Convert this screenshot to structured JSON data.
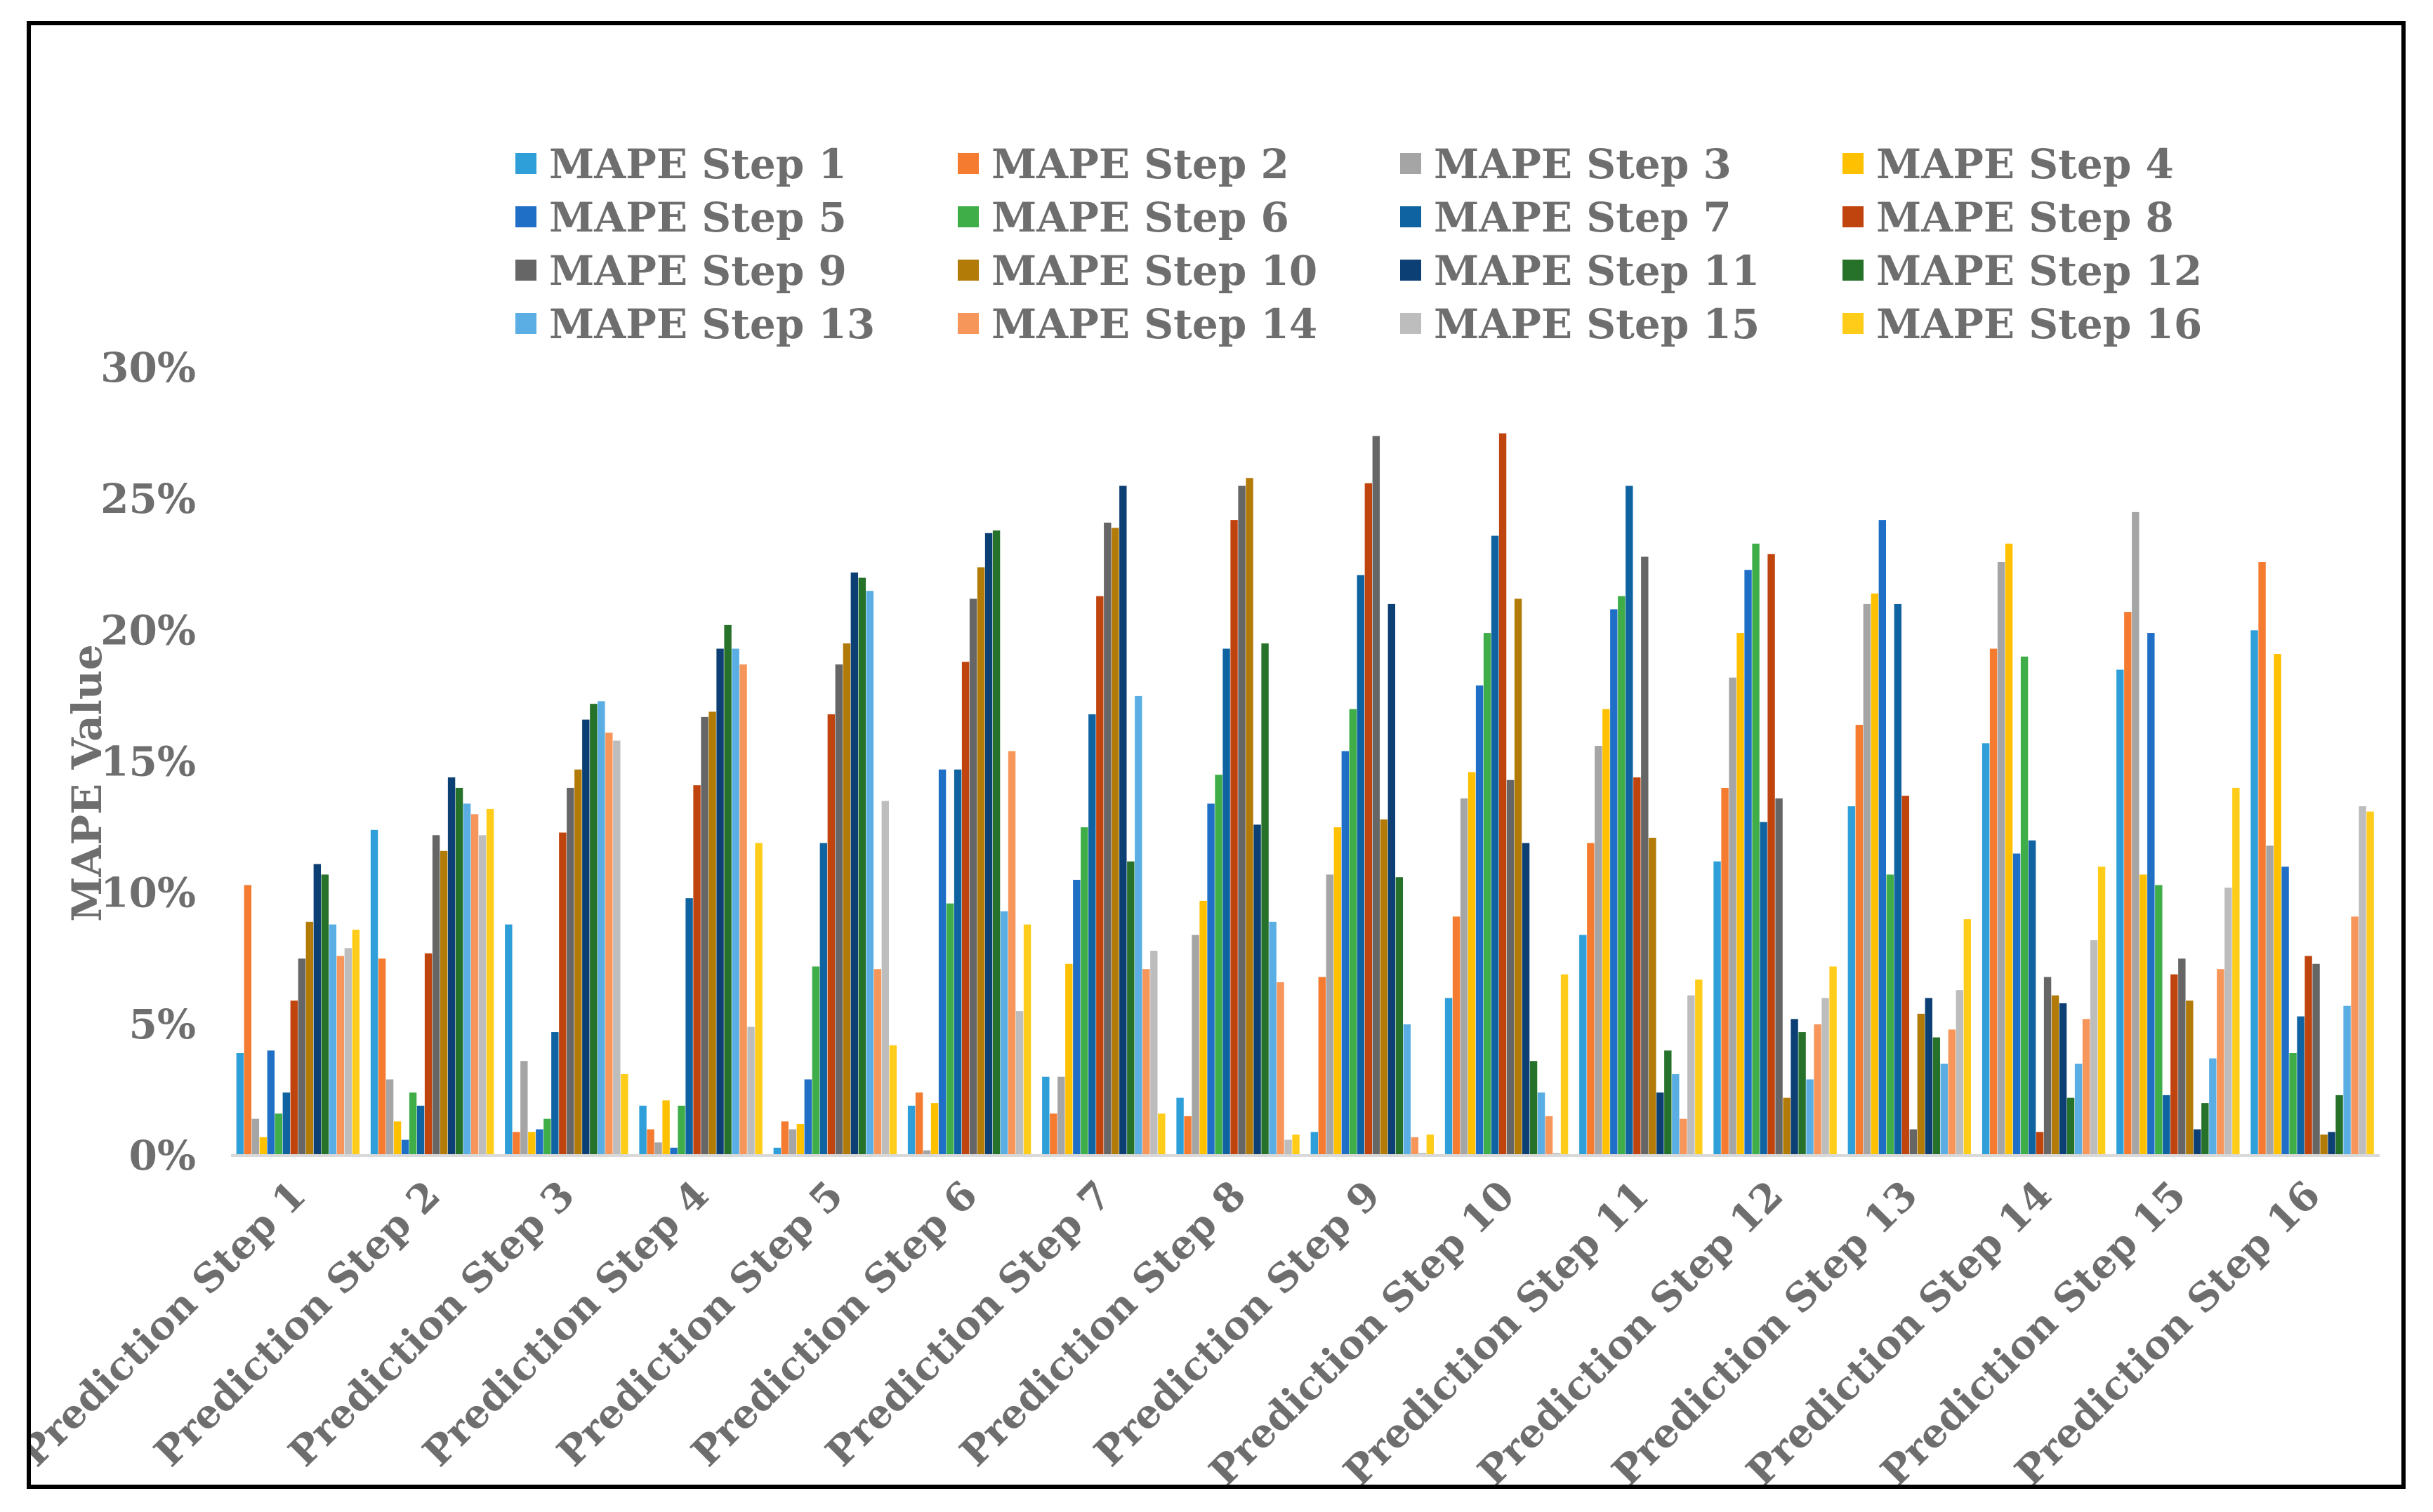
{
  "chart_data": {
    "type": "bar",
    "title": "",
    "xlabel": "",
    "ylabel": "MAPE Value",
    "ylim": [
      0,
      0.3
    ],
    "yticks": [
      "0%",
      "5%",
      "10%",
      "15%",
      "20%",
      "25%",
      "30%"
    ],
    "grid": false,
    "legend_position": "top",
    "categories": [
      "Prediction Step 1",
      "Prediction Step 2",
      "Prediction Step 3",
      "Prediction Step 4",
      "Prediction Step 5",
      "Prediction Step 6",
      "Prediction Step 7",
      "Prediction Step 8",
      "Prediction Step 9",
      "Prediction Step 10",
      "Prediction Step 11",
      "Prediction Step 12",
      "Prediction Step 13",
      "Prediction Step 14",
      "Prediction Step 15",
      "Prediction Step 16"
    ],
    "series": [
      {
        "name": "MAPE Step 1",
        "color": "#2e9fd8",
        "values": [
          0.039,
          0.124,
          0.088,
          0.019,
          0.003,
          0.019,
          0.03,
          0.022,
          0.009,
          0.06,
          0.084,
          0.112,
          0.133,
          0.157,
          0.185,
          0.2
        ]
      },
      {
        "name": "MAPE Step 2",
        "color": "#f47b30",
        "values": [
          0.103,
          0.075,
          0.009,
          0.01,
          0.013,
          0.024,
          0.016,
          0.015,
          0.068,
          0.091,
          0.119,
          0.14,
          0.164,
          0.193,
          0.207,
          0.226
        ]
      },
      {
        "name": "MAPE Step 3",
        "color": "#a5a5a5",
        "values": [
          0.014,
          0.029,
          0.036,
          0.005,
          0.01,
          0.002,
          0.03,
          0.084,
          0.107,
          0.136,
          0.156,
          0.182,
          0.21,
          0.226,
          0.245,
          0.118
        ]
      },
      {
        "name": "MAPE Step 4",
        "color": "#ffc000",
        "values": [
          0.007,
          0.013,
          0.009,
          0.021,
          0.012,
          0.02,
          0.073,
          0.097,
          0.125,
          0.146,
          0.17,
          0.199,
          0.214,
          0.233,
          0.107,
          0.191
        ]
      },
      {
        "name": "MAPE Step 5",
        "color": "#1f6fc6",
        "values": [
          0.04,
          0.006,
          0.01,
          0.003,
          0.029,
          0.147,
          0.105,
          0.134,
          0.154,
          0.179,
          0.208,
          0.223,
          0.242,
          0.115,
          0.199,
          0.11
        ]
      },
      {
        "name": "MAPE Step 6",
        "color": "#3fae49",
        "values": [
          0.016,
          0.024,
          0.014,
          0.019,
          0.072,
          0.096,
          0.125,
          0.145,
          0.17,
          0.199,
          0.213,
          0.233,
          0.107,
          0.19,
          0.103,
          0.039
        ]
      },
      {
        "name": "MAPE Step 7",
        "color": "#0f63a0",
        "values": [
          0.024,
          0.019,
          0.047,
          0.098,
          0.119,
          0.147,
          0.168,
          0.193,
          0.221,
          0.236,
          0.255,
          0.127,
          0.21,
          0.12,
          0.023,
          0.053
        ]
      },
      {
        "name": "MAPE Step 8",
        "color": "#c0440e",
        "values": [
          0.059,
          0.077,
          0.123,
          0.141,
          0.168,
          0.188,
          0.213,
          0.242,
          0.256,
          0.275,
          0.144,
          0.229,
          0.137,
          0.009,
          0.069,
          0.076
        ]
      },
      {
        "name": "MAPE Step 9",
        "color": "#666666",
        "values": [
          0.075,
          0.122,
          0.14,
          0.167,
          0.187,
          0.212,
          0.241,
          0.255,
          0.274,
          0.143,
          0.228,
          0.136,
          0.01,
          0.068,
          0.075,
          0.073
        ]
      },
      {
        "name": "MAPE Step 10",
        "color": "#b27a07",
        "values": [
          0.089,
          0.116,
          0.147,
          0.169,
          0.195,
          0.224,
          0.239,
          0.258,
          0.128,
          0.212,
          0.121,
          0.022,
          0.054,
          0.061,
          0.059,
          0.008
        ]
      },
      {
        "name": "MAPE Step 11",
        "color": "#0c3f74",
        "values": [
          0.111,
          0.144,
          0.166,
          0.193,
          0.222,
          0.237,
          0.255,
          0.126,
          0.21,
          0.119,
          0.024,
          0.052,
          0.06,
          0.058,
          0.01,
          0.009
        ]
      },
      {
        "name": "MAPE Step 12",
        "color": "#26722a",
        "values": [
          0.107,
          0.14,
          0.172,
          0.202,
          0.22,
          0.238,
          0.112,
          0.195,
          0.106,
          0.036,
          0.04,
          0.047,
          0.045,
          0.022,
          0.02,
          0.023
        ]
      },
      {
        "name": "MAPE Step 13",
        "color": "#5aaee3",
        "values": [
          0.088,
          0.134,
          0.173,
          0.193,
          0.215,
          0.093,
          0.175,
          0.089,
          0.05,
          0.024,
          0.031,
          0.029,
          0.035,
          0.035,
          0.037,
          0.057
        ]
      },
      {
        "name": "MAPE Step 14",
        "color": "#f6965a",
        "values": [
          0.076,
          0.13,
          0.161,
          0.187,
          0.071,
          0.154,
          0.071,
          0.066,
          0.007,
          0.015,
          0.014,
          0.05,
          0.048,
          0.052,
          0.071,
          0.091
        ]
      },
      {
        "name": "MAPE Step 15",
        "color": "#bdbdbd",
        "values": [
          0.079,
          0.122,
          0.158,
          0.049,
          0.135,
          0.055,
          0.078,
          0.006,
          0.001,
          0.001,
          0.061,
          0.06,
          0.063,
          0.082,
          0.102,
          0.133
        ]
      },
      {
        "name": "MAPE Step 16",
        "color": "#ffcc1a",
        "values": [
          0.086,
          0.132,
          0.031,
          0.119,
          0.042,
          0.088,
          0.016,
          0.008,
          0.008,
          0.069,
          0.067,
          0.072,
          0.09,
          0.11,
          0.14,
          0.131
        ]
      }
    ]
  }
}
